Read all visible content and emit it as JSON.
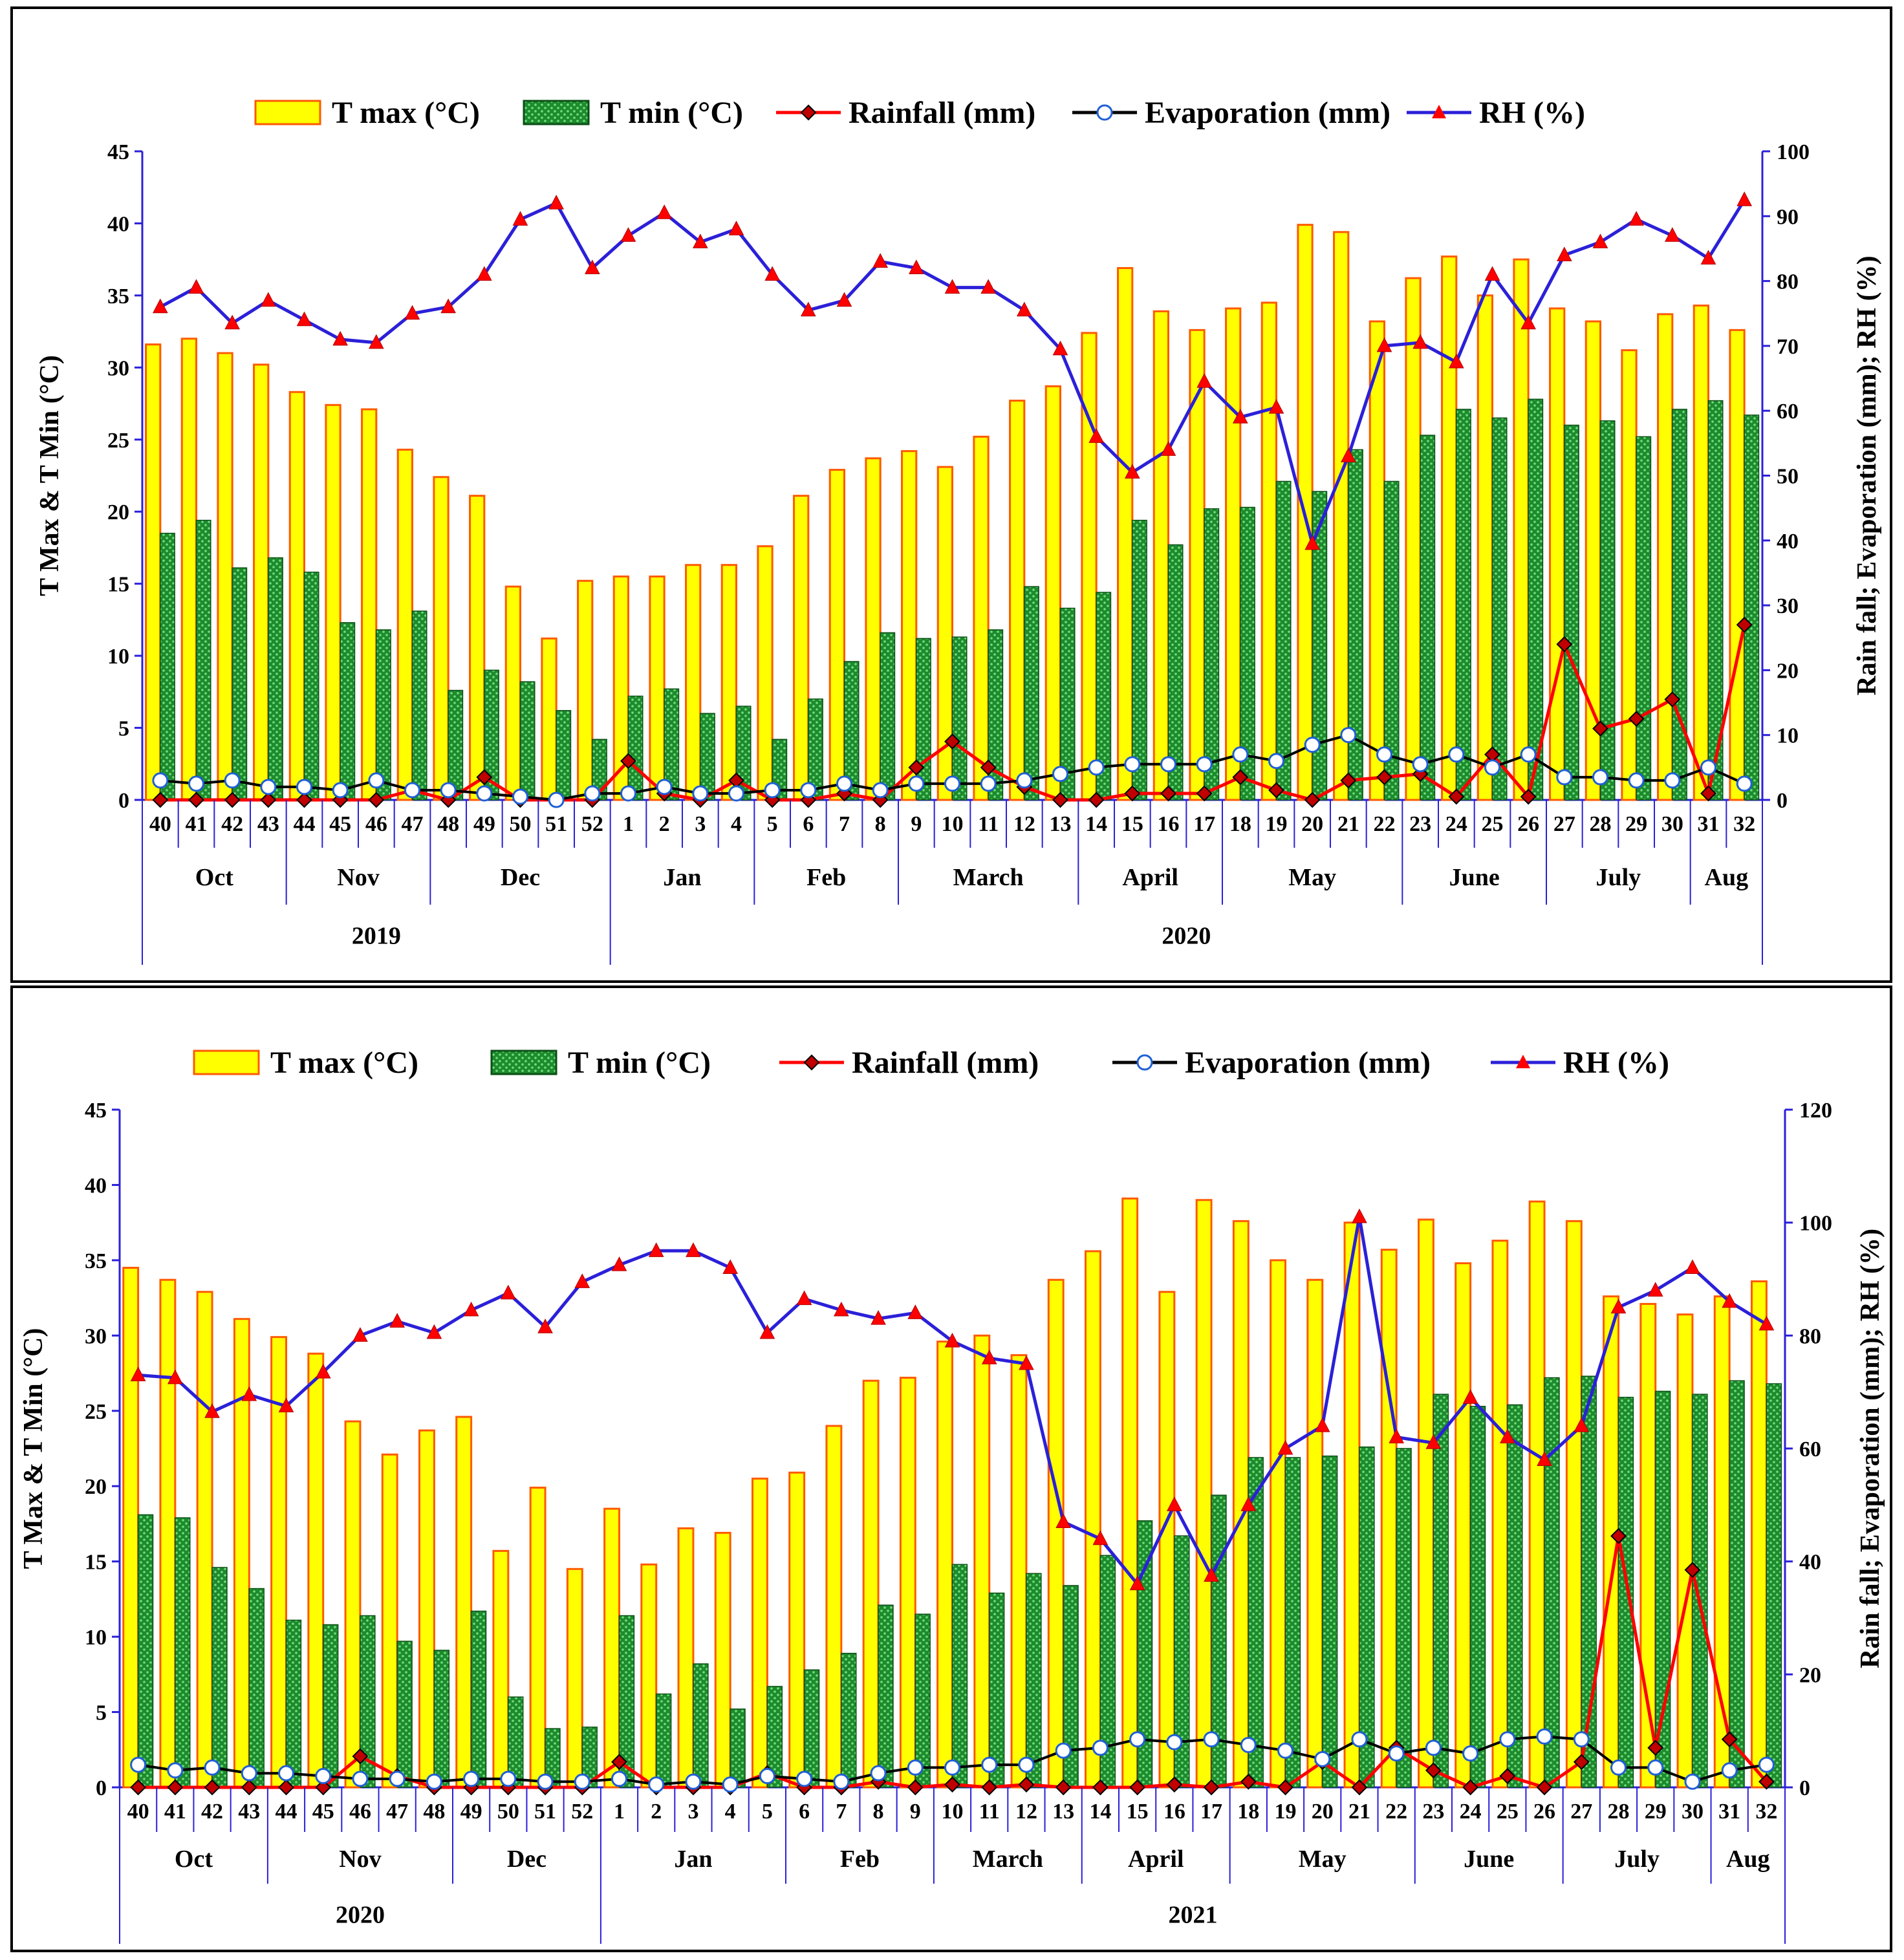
{
  "colors": {
    "tmax_fill": "#ffff00",
    "tmax_edge": "#ff5a00",
    "tmin_fill": "#1e8a2e",
    "tmin_dot": "#6ee07a",
    "rainfall": "#ff0000",
    "rainfall_marker": "#c00000",
    "evaporation": "#000000",
    "evap_marker": "#1f5fd6",
    "rh": "#2b20d8",
    "rh_marker": "#ff0000",
    "axis": "#2b20d8"
  },
  "chart_data": [
    {
      "type": "bar",
      "left_ylabel": "T Max & T Min (°C)",
      "right_ylabel": "Rain fall; Evaporation (mm); RH (%)",
      "left_ylim": [
        0,
        45
      ],
      "left_ticks": [
        "0",
        "5",
        "10",
        "15",
        "20",
        "25",
        "30",
        "35",
        "40",
        "45"
      ],
      "right_ylim": [
        0,
        100
      ],
      "right_ticks": [
        "0",
        "10",
        "20",
        "30",
        "40",
        "50",
        "60",
        "70",
        "80",
        "90",
        "100"
      ],
      "legend": [
        "T max (°C)",
        "T min (°C)",
        "Rainfall (mm)",
        "Evaporation (mm)",
        "RH (%)"
      ],
      "categories": [
        "40",
        "41",
        "42",
        "43",
        "44",
        "45",
        "46",
        "47",
        "48",
        "49",
        "50",
        "51",
        "52",
        "1",
        "2",
        "3",
        "4",
        "5",
        "6",
        "7",
        "8",
        "9",
        "10",
        "11",
        "12",
        "13",
        "14",
        "15",
        "16",
        "17",
        "18",
        "19",
        "20",
        "21",
        "22",
        "23",
        "24",
        "25",
        "26",
        "27",
        "28",
        "29",
        "30",
        "31",
        "32"
      ],
      "months": [
        {
          "label": "Oct",
          "start": 0,
          "end": 3
        },
        {
          "label": "Nov",
          "start": 4,
          "end": 7
        },
        {
          "label": "Dec",
          "start": 8,
          "end": 12
        },
        {
          "label": "Jan",
          "start": 13,
          "end": 16
        },
        {
          "label": "Feb",
          "start": 17,
          "end": 20
        },
        {
          "label": "March",
          "start": 21,
          "end": 25
        },
        {
          "label": "April",
          "start": 26,
          "end": 29
        },
        {
          "label": "May",
          "start": 30,
          "end": 34
        },
        {
          "label": "June",
          "start": 35,
          "end": 38
        },
        {
          "label": "July",
          "start": 39,
          "end": 42
        },
        {
          "label": "Aug",
          "start": 43,
          "end": 44
        }
      ],
      "years": [
        {
          "label": "2019",
          "start": 0,
          "end": 12
        },
        {
          "label": "2020",
          "start": 13,
          "end": 44
        }
      ],
      "series": [
        {
          "name": "T max (°C)",
          "axis": "left",
          "values": [
            31.6,
            32.0,
            31.0,
            30.2,
            28.3,
            27.4,
            27.1,
            24.3,
            22.4,
            21.1,
            14.8,
            11.2,
            15.2,
            15.5,
            15.5,
            16.3,
            16.3,
            17.6,
            21.1,
            22.9,
            23.7,
            24.2,
            23.1,
            25.2,
            27.7,
            28.7,
            32.4,
            36.9,
            33.9,
            32.6,
            34.1,
            34.5,
            39.9,
            39.4,
            33.2,
            36.2,
            37.7,
            35.0,
            37.5,
            34.1,
            33.2,
            31.2,
            33.7,
            34.3,
            32.6
          ]
        },
        {
          "name": "T min (°C)",
          "axis": "left",
          "values": [
            18.5,
            19.4,
            16.1,
            16.8,
            15.8,
            12.3,
            11.8,
            13.1,
            7.6,
            9.0,
            8.2,
            6.2,
            4.2,
            7.2,
            7.7,
            6.0,
            6.5,
            4.2,
            7.0,
            9.6,
            11.6,
            11.2,
            11.3,
            11.8,
            14.8,
            13.3,
            14.4,
            19.4,
            17.7,
            20.2,
            20.3,
            22.1,
            21.4,
            24.3,
            22.1,
            25.3,
            27.1,
            26.5,
            27.8,
            26.0,
            26.3,
            25.2,
            27.1,
            27.7,
            26.7
          ]
        },
        {
          "name": "Rainfall (mm)",
          "axis": "right",
          "values": [
            0,
            0,
            0,
            0,
            0,
            0,
            0,
            1.5,
            0,
            3.5,
            0,
            0,
            0,
            6,
            1,
            0,
            3,
            0,
            0,
            1,
            0,
            5,
            9,
            5,
            2,
            0,
            0,
            1,
            1,
            1,
            3.5,
            1.5,
            0,
            3,
            3.5,
            4,
            0.5,
            7,
            0.5,
            24,
            11,
            12.5,
            15.5,
            1,
            27
          ]
        },
        {
          "name": "Evaporation (mm)",
          "axis": "right",
          "values": [
            3,
            2.5,
            3,
            2,
            2,
            1.5,
            3,
            1.5,
            1.5,
            1,
            0.5,
            0,
            1,
            1,
            2,
            1,
            1,
            1.5,
            1.5,
            2.5,
            1.5,
            2.5,
            2.5,
            2.5,
            3,
            4,
            5,
            5.5,
            5.5,
            5.5,
            7,
            6,
            8.5,
            10,
            7,
            5.5,
            7,
            5,
            7,
            3.5,
            3.5,
            3,
            3,
            5,
            2.5
          ]
        },
        {
          "name": "RH (%)",
          "axis": "right",
          "values": [
            76,
            79,
            73.5,
            77,
            74,
            71,
            70.5,
            75,
            76,
            81,
            89.5,
            92,
            82,
            87,
            90.5,
            86,
            88,
            81,
            75.5,
            77,
            83,
            82,
            79,
            79,
            75.5,
            69.5,
            56,
            50.5,
            54,
            64.5,
            59,
            60.5,
            39.5,
            53,
            70,
            70.5,
            67.5,
            81,
            73.5,
            84,
            86,
            89.5,
            87,
            83.5,
            92.5
          ]
        }
      ]
    },
    {
      "type": "bar",
      "left_ylabel": "T Max & T Min (°C)",
      "right_ylabel": "Rain fall; Evaporation (mm); RH (%)",
      "left_ylim": [
        0,
        45
      ],
      "left_ticks": [
        "0",
        "5",
        "10",
        "15",
        "20",
        "25",
        "30",
        "35",
        "40",
        "45"
      ],
      "right_ylim": [
        0,
        120
      ],
      "right_ticks": [
        "0",
        "20",
        "40",
        "60",
        "80",
        "100",
        "120"
      ],
      "legend": [
        "T max (°C)",
        "T min (°C)",
        "Rainfall (mm)",
        "Evaporation (mm)",
        "RH (%)"
      ],
      "categories": [
        "40",
        "41",
        "42",
        "43",
        "44",
        "45",
        "46",
        "47",
        "48",
        "49",
        "50",
        "51",
        "52",
        "1",
        "2",
        "3",
        "4",
        "5",
        "6",
        "7",
        "8",
        "9",
        "10",
        "11",
        "12",
        "13",
        "14",
        "15",
        "16",
        "17",
        "18",
        "19",
        "20",
        "21",
        "22",
        "23",
        "24",
        "25",
        "26",
        "27",
        "28",
        "29",
        "30",
        "31",
        "32"
      ],
      "months": [
        {
          "label": "Oct",
          "start": 0,
          "end": 3
        },
        {
          "label": "Nov",
          "start": 4,
          "end": 8
        },
        {
          "label": "Dec",
          "start": 9,
          "end": 12
        },
        {
          "label": "Jan",
          "start": 13,
          "end": 17
        },
        {
          "label": "Feb",
          "start": 18,
          "end": 21
        },
        {
          "label": "March",
          "start": 22,
          "end": 25
        },
        {
          "label": "April",
          "start": 26,
          "end": 29
        },
        {
          "label": "May",
          "start": 30,
          "end": 34
        },
        {
          "label": "June",
          "start": 35,
          "end": 38
        },
        {
          "label": "July",
          "start": 39,
          "end": 42
        },
        {
          "label": "Aug",
          "start": 43,
          "end": 44
        }
      ],
      "years": [
        {
          "label": "2020",
          "start": 0,
          "end": 12
        },
        {
          "label": "2021",
          "start": 13,
          "end": 44
        }
      ],
      "series": [
        {
          "name": "T max (°C)",
          "axis": "left",
          "values": [
            34.5,
            33.7,
            32.9,
            31.1,
            29.9,
            28.8,
            24.3,
            22.1,
            23.7,
            24.6,
            15.7,
            19.9,
            14.5,
            18.5,
            14.8,
            17.2,
            16.9,
            20.5,
            20.9,
            24.0,
            27.0,
            27.2,
            29.6,
            30.0,
            28.7,
            33.7,
            35.6,
            39.1,
            32.9,
            39.0,
            37.6,
            35.0,
            33.7,
            37.5,
            35.7,
            37.7,
            34.8,
            36.3,
            38.9,
            37.6,
            32.6,
            32.1,
            31.4,
            32.6,
            33.6
          ]
        },
        {
          "name": "T min (°C)",
          "axis": "left",
          "values": [
            18.1,
            17.9,
            14.6,
            13.2,
            11.1,
            10.8,
            11.4,
            9.7,
            9.1,
            11.7,
            6.0,
            3.9,
            4.0,
            11.4,
            6.2,
            8.2,
            5.2,
            6.7,
            7.8,
            8.9,
            12.1,
            11.5,
            14.8,
            12.9,
            14.2,
            13.4,
            15.4,
            17.7,
            16.7,
            19.4,
            21.9,
            21.9,
            22.0,
            22.6,
            22.5,
            26.1,
            25.3,
            25.4,
            27.2,
            27.3,
            25.9,
            26.3,
            26.1,
            27.0,
            26.8
          ]
        },
        {
          "name": "Rainfall (mm)",
          "axis": "right",
          "values": [
            0,
            0,
            0,
            0,
            0,
            0,
            5.5,
            2,
            0,
            0,
            0,
            0,
            0,
            4.5,
            0,
            0,
            0,
            2.5,
            0,
            0,
            1,
            0,
            0.5,
            0,
            0.5,
            0,
            0,
            0,
            0.5,
            0,
            1,
            0,
            4.5,
            0,
            7,
            3,
            0,
            2,
            0,
            4.5,
            44.5,
            7,
            38.5,
            8.5,
            1
          ]
        },
        {
          "name": "Evaporation (mm)",
          "axis": "right",
          "values": [
            4,
            3,
            3.5,
            2.5,
            2.5,
            2,
            1.5,
            1.5,
            1,
            1.5,
            1.5,
            1,
            1,
            1.5,
            0.5,
            1,
            0.5,
            2,
            1.5,
            1,
            2.5,
            3.5,
            3.5,
            4,
            4,
            6.5,
            7,
            8.5,
            8,
            8.5,
            7.5,
            6.5,
            5,
            8.5,
            6,
            7,
            6,
            8.5,
            9,
            8.5,
            3.5,
            3.5,
            1,
            3,
            4
          ]
        },
        {
          "name": "RH (%)",
          "axis": "right",
          "values": [
            73,
            72.5,
            66.5,
            69.5,
            67.5,
            73.5,
            80,
            82.5,
            80.5,
            84.5,
            87.5,
            81.5,
            89.5,
            92.5,
            95,
            95,
            92,
            80.5,
            86.5,
            84.5,
            83,
            84,
            79,
            76,
            75,
            47,
            44,
            36,
            50,
            37.5,
            50,
            60,
            64,
            101,
            62,
            61,
            69,
            62,
            58,
            64,
            85,
            88,
            92,
            86,
            82
          ]
        }
      ]
    }
  ]
}
